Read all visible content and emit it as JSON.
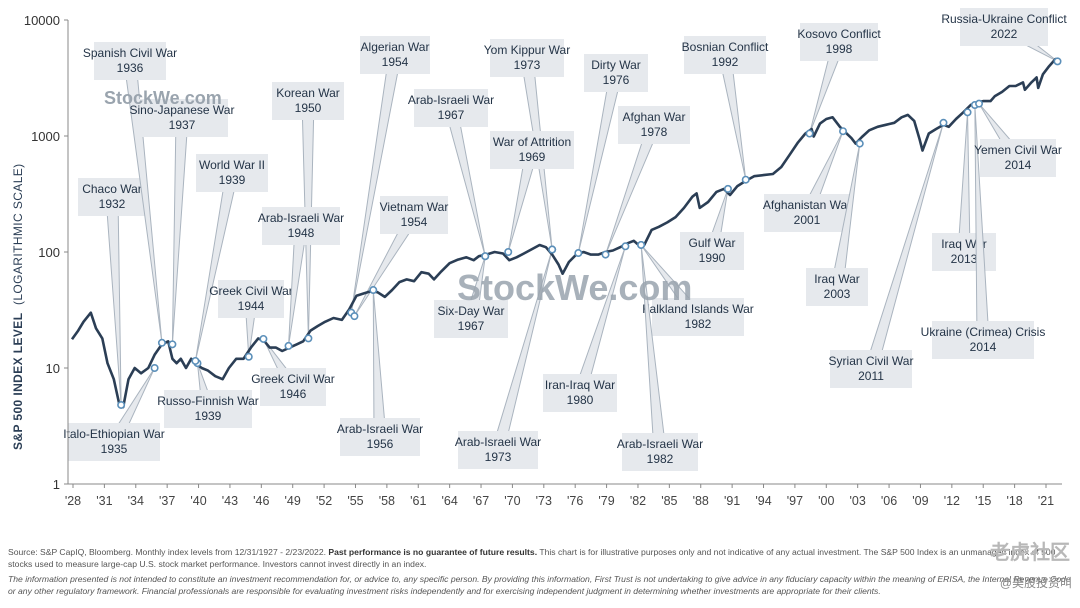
{
  "chart_data": {
    "type": "line",
    "title": "",
    "ylabel": "S&P 500 INDEX LEVEL",
    "ylabel_note": "(LOGARITHMIC SCALE)",
    "yscale": "log",
    "ylim": [
      1,
      10000
    ],
    "y_ticks": [
      1,
      10,
      100,
      1000,
      10000
    ],
    "y_tick_labels": [
      "1",
      "10",
      "100",
      "1000",
      "10000"
    ],
    "x_ticks": [
      "'28",
      "'31",
      "'34",
      "'37",
      "'40",
      "'43",
      "'46",
      "'49",
      "'52",
      "'55",
      "'58",
      "'61",
      "'64",
      "'67",
      "'70",
      "'73",
      "'76",
      "'79",
      "'82",
      "'85",
      "'88",
      "'91",
      "'94",
      "'97",
      "'00",
      "'03",
      "'06",
      "'09",
      "'12",
      "'15",
      "'18",
      "'21"
    ],
    "grid": false,
    "series": [
      {
        "name": "",
        "x": [
          1927.9,
          1928.5,
          1929.0,
          1929.7,
          1930.2,
          1930.8,
          1931.3,
          1931.9,
          1932.4,
          1932.8,
          1933.3,
          1933.9,
          1934.5,
          1935.2,
          1935.8,
          1936.5,
          1937.1,
          1937.5,
          1937.9,
          1938.3,
          1938.8,
          1939.3,
          1939.7,
          1940.3,
          1940.9,
          1941.6,
          1942.3,
          1942.9,
          1943.6,
          1944.3,
          1945.0,
          1945.7,
          1946.3,
          1946.8,
          1947.4,
          1948.0,
          1948.7,
          1949.4,
          1950.0,
          1950.7,
          1951.4,
          1952.1,
          1952.9,
          1953.7,
          1954.4,
          1955.1,
          1955.8,
          1956.5,
          1957.1,
          1957.8,
          1958.5,
          1959.2,
          1959.9,
          1960.6,
          1961.3,
          1962.0,
          1962.5,
          1963.2,
          1964.0,
          1964.8,
          1965.6,
          1966.3,
          1966.8,
          1967.5,
          1968.3,
          1969.1,
          1969.7,
          1970.4,
          1971.1,
          1971.8,
          1972.6,
          1973.2,
          1973.8,
          1974.4,
          1974.8,
          1975.4,
          1976.1,
          1976.8,
          1977.5,
          1978.2,
          1978.9,
          1979.6,
          1980.3,
          1980.9,
          1981.6,
          1982.2,
          1982.6,
          1983.3,
          1984.0,
          1984.8,
          1985.6,
          1986.4,
          1987.2,
          1987.6,
          1987.9,
          1988.7,
          1989.5,
          1990.2,
          1990.8,
          1991.5,
          1992.3,
          1993.1,
          1994.0,
          1994.9,
          1995.7,
          1996.5,
          1997.3,
          1998.0,
          1998.6,
          1998.8,
          1999.4,
          2000.0,
          2000.6,
          2001.3,
          2001.8,
          2002.4,
          2002.8,
          2003.4,
          2004.1,
          2004.9,
          2005.7,
          2006.5,
          2007.2,
          2007.8,
          2008.4,
          2008.9,
          2009.2,
          2009.8,
          2010.5,
          2011.2,
          2011.7,
          2012.4,
          2013.1,
          2013.8,
          2014.4,
          2015.0,
          2015.7,
          2016.1,
          2016.8,
          2017.5,
          2018.1,
          2018.8,
          2018.98,
          2019.6,
          2020.1,
          2020.25,
          2020.7,
          2021.3,
          2021.9,
          2022.15
        ],
        "values": [
          17.7,
          21,
          25,
          30,
          22,
          18,
          11,
          8,
          5,
          4.6,
          8,
          10,
          9,
          10,
          13,
          16,
          17,
          12,
          11,
          12,
          10,
          12,
          11,
          10,
          9.5,
          8.5,
          8,
          10,
          12,
          12,
          15,
          18,
          17,
          15,
          15,
          14,
          15,
          16,
          17,
          21,
          23,
          25,
          27,
          26,
          32,
          42,
          44,
          46,
          45,
          41,
          47,
          55,
          58,
          56,
          67,
          65,
          58,
          68,
          80,
          86,
          90,
          85,
          92,
          95,
          100,
          97,
          85,
          90,
          97,
          105,
          115,
          110,
          95,
          78,
          65,
          82,
          95,
          100,
          95,
          95,
          100,
          103,
          110,
          118,
          125,
          112,
          115,
          155,
          165,
          180,
          200,
          240,
          300,
          320,
          240,
          270,
          330,
          350,
          310,
          370,
          410,
          450,
          460,
          470,
          540,
          690,
          880,
          1050,
          1150,
          990,
          1280,
          1400,
          1450,
          1200,
          1080,
          960,
          860,
          980,
          1120,
          1200,
          1250,
          1300,
          1450,
          1520,
          1350,
          950,
          750,
          1050,
          1150,
          1250,
          1200,
          1400,
          1600,
          1850,
          1950,
          2000,
          2000,
          2200,
          2400,
          2700,
          2700,
          2900,
          2500,
          2900,
          3200,
          2600,
          3400,
          4000,
          4600,
          4400
        ]
      }
    ],
    "annotations": [
      {
        "label": "Chaco War 1932",
        "year": 1932.6,
        "value": 4.8
      },
      {
        "label": "Italo-Ethiopian War 1935",
        "year": 1935.8,
        "value": 10
      },
      {
        "label": "Spanish Civil War 1936",
        "year": 1936.5,
        "value": 16.5
      },
      {
        "label": "Sino-Japanese War 1937",
        "year": 1937.5,
        "value": 16
      },
      {
        "label": "Russo-Finnish War 1939",
        "year": 1939.9,
        "value": 11
      },
      {
        "label": "World War II 1939",
        "year": 1939.7,
        "value": 11.5
      },
      {
        "label": "Greek Civil War 1944",
        "year": 1944.8,
        "value": 12.5
      },
      {
        "label": "Greek Civil War 1946",
        "year": 1946.2,
        "value": 17.8
      },
      {
        "label": "Korean War 1950",
        "year": 1950.5,
        "value": 18
      },
      {
        "label": "Arab-Israeli War 1948",
        "year": 1948.6,
        "value": 15.5
      },
      {
        "label": "Algerian War 1954",
        "year": 1954.6,
        "value": 30
      },
      {
        "label": "Vietnam War 1954",
        "year": 1954.9,
        "value": 28
      },
      {
        "label": "Arab-Israeli War 1956",
        "year": 1956.7,
        "value": 47
      },
      {
        "label": "Six-Day War 1967",
        "year": 1967.4,
        "value": 92
      },
      {
        "label": "Arab-Israeli War 1967",
        "year": 1967.4,
        "value": 92
      },
      {
        "label": "Yom Kippur War 1973",
        "year": 1973.8,
        "value": 105
      },
      {
        "label": "War of Attrition 1969",
        "year": 1969.6,
        "value": 100
      },
      {
        "label": "Arab-Israeli War 1973",
        "year": 1973.8,
        "value": 105
      },
      {
        "label": "Dirty War 1976",
        "year": 1976.3,
        "value": 98
      },
      {
        "label": "Afghan War 1978",
        "year": 1978.9,
        "value": 95
      },
      {
        "label": "Iran-Iraq War 1980",
        "year": 1980.8,
        "value": 112
      },
      {
        "label": "Falkland Islands War 1982",
        "year": 1982.3,
        "value": 115
      },
      {
        "label": "Arab-Israeli War 1982",
        "year": 1982.3,
        "value": 115
      },
      {
        "label": "Gulf War 1990",
        "year": 1990.6,
        "value": 350
      },
      {
        "label": "Bosnian Conflict 1992",
        "year": 1992.3,
        "value": 420
      },
      {
        "label": "Kosovo Conflict 1998",
        "year": 1998.4,
        "value": 1050
      },
      {
        "label": "Afghanistan War 2001",
        "year": 2001.6,
        "value": 1100
      },
      {
        "label": "Iraq War 2003",
        "year": 2003.2,
        "value": 860
      },
      {
        "label": "Syrian Civil War 2011",
        "year": 2011.2,
        "value": 1300
      },
      {
        "label": "Iraq War 2013",
        "year": 2013.5,
        "value": 1600
      },
      {
        "label": "Ukraine (Crimea) Crisis 2014",
        "year": 2014.2,
        "value": 1850
      },
      {
        "label": "Yemen Civil War 2014",
        "year": 2014.6,
        "value": 1900
      },
      {
        "label": "Russia-Ukraine Conflict 2022",
        "year": 2022.1,
        "value": 4400
      }
    ]
  },
  "watermarks": {
    "small": "StockWe.com",
    "large": "StockWe.com"
  },
  "footer": {
    "source": "Source: S&P CapIQ, Bloomberg. Monthly index levels from 12/31/1927 - 2/23/2022.",
    "bold_note": "Past performance is no guarantee of future results.",
    "source_rest": "This chart is for illustrative purposes only and not indicative of any actual investment. The S&P 500 Index is an unmanaged index of 500 stocks used to measure large-cap U.S. stock market performance. Investors cannot invest directly in an index.",
    "disclaimer": "The information presented is not intended to constitute an investment recommendation for, or advice to, any specific person. By providing this information, First Trust is not undertaking to give advice in any fiduciary capacity within the meaning of ERISA, the Internal Revenue Code or any other regulatory framework. Financial professionals are responsible for evaluating investment risks independently and for exercising independent judgment in determining whether investments are appropriate for their clients."
  },
  "logo": {
    "text": "老虎社区",
    "sub": "@美股投资叫"
  },
  "colors": {
    "line": "#2b3e55",
    "callout_fill": "#e6e9ed",
    "callout_stroke": "#aab4bf",
    "marker_fill": "#ffffff",
    "marker_stroke": "#5b8fb9"
  }
}
